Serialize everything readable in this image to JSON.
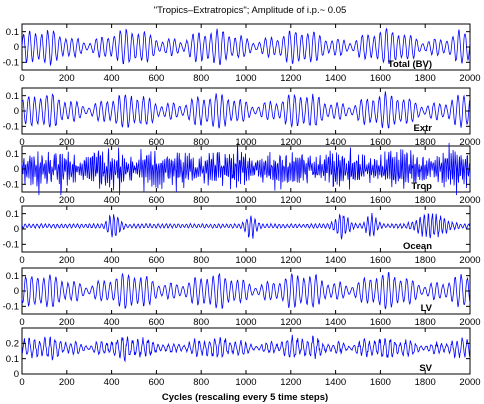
{
  "chart_data": {
    "type": "line",
    "title": "\"Tropics–Extratropics\"; Amplitude of i.p.~ 0.05",
    "xlabel": "Cycles (rescaling every 5 time steps)",
    "x_range": [
      0,
      2000
    ],
    "x_ticks": [
      0,
      200,
      400,
      600,
      800,
      1000,
      1200,
      1400,
      1600,
      1800,
      2000
    ],
    "line_color": "#0000ff",
    "panels": [
      {
        "label": "Total (BV)",
        "ylim": [
          -0.15,
          0.15
        ],
        "y_ticks": [
          0.1,
          0,
          -0.1
        ],
        "y_tick_labels": [
          "0.1",
          "0",
          "-0.1"
        ],
        "baseline": 0,
        "amplitude": 0.09,
        "noise": 0.01,
        "period": 27,
        "style": "regular"
      },
      {
        "label": "Extr",
        "ylim": [
          -0.15,
          0.15
        ],
        "y_ticks": [
          0.1,
          0,
          -0.1
        ],
        "y_tick_labels": [
          "0.1",
          "0",
          "-0.1"
        ],
        "baseline": 0,
        "amplitude": 0.09,
        "noise": 0.01,
        "period": 27,
        "style": "regular"
      },
      {
        "label": "Trop",
        "ylim": [
          -0.15,
          0.15
        ],
        "y_ticks": [
          0.1,
          0,
          -0.1
        ],
        "y_tick_labels": [
          "0.1",
          "0",
          "-0.1"
        ],
        "baseline": 0,
        "amplitude": 0.05,
        "noise": 0.04,
        "period": 9,
        "style": "noisy"
      },
      {
        "label": "Ocean",
        "ylim": [
          -0.15,
          0.15
        ],
        "y_ticks": [
          0.1,
          0,
          -0.1
        ],
        "y_tick_labels": [
          "0.1",
          "0",
          "-0.1"
        ],
        "baseline": 0.02,
        "amplitude": 0.02,
        "noise": 0.006,
        "period": 18,
        "style": "bursty"
      },
      {
        "label": "LV",
        "ylim": [
          -0.15,
          0.15
        ],
        "y_ticks": [
          0.1,
          0,
          -0.1
        ],
        "y_tick_labels": [
          "0.1",
          "0",
          "-0.1"
        ],
        "baseline": 0,
        "amplitude": 0.09,
        "noise": 0.01,
        "period": 27,
        "style": "regular"
      },
      {
        "label": "SV",
        "ylim": [
          0,
          0.3
        ],
        "y_ticks": [
          0.2,
          0.1,
          0
        ],
        "y_tick_labels": [
          "0.2",
          "0.1",
          "0"
        ],
        "baseline": 0.17,
        "amplitude": 0.05,
        "noise": 0.02,
        "period": 23,
        "style": "positive"
      }
    ]
  }
}
